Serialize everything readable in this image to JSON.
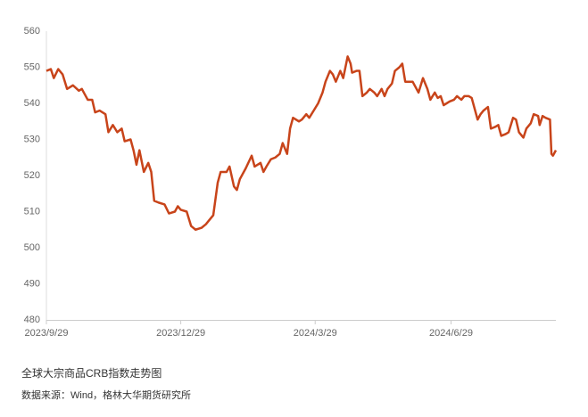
{
  "chart_data": {
    "type": "line",
    "x": [
      "2023-09-29",
      "2023-10-02",
      "2023-10-04",
      "2023-10-07",
      "2023-10-10",
      "2023-10-13",
      "2023-10-17",
      "2023-10-21",
      "2023-10-23",
      "2023-10-27",
      "2023-10-30",
      "2023-11-01",
      "2023-11-04",
      "2023-11-08",
      "2023-11-10",
      "2023-11-13",
      "2023-11-16",
      "2023-11-19",
      "2023-11-21",
      "2023-11-25",
      "2023-11-27",
      "2023-11-29",
      "2023-12-01",
      "2023-12-04",
      "2023-12-07",
      "2023-12-09",
      "2023-12-11",
      "2023-12-14",
      "2023-12-18",
      "2023-12-21",
      "2023-12-25",
      "2023-12-27",
      "2023-12-29",
      "2024-01-02",
      "2024-01-05",
      "2024-01-08",
      "2024-01-12",
      "2024-01-15",
      "2024-01-18",
      "2024-01-20",
      "2024-01-23",
      "2024-01-25",
      "2024-01-29",
      "2024-01-31",
      "2024-02-03",
      "2024-02-05",
      "2024-02-07",
      "2024-02-11",
      "2024-02-15",
      "2024-02-17",
      "2024-02-21",
      "2024-02-23",
      "2024-02-25",
      "2024-02-28",
      "2024-03-02",
      "2024-03-05",
      "2024-03-07",
      "2024-03-10",
      "2024-03-12",
      "2024-03-14",
      "2024-03-18",
      "2024-03-20",
      "2024-03-23",
      "2024-03-25",
      "2024-03-28",
      "2024-03-31",
      "2024-04-03",
      "2024-04-05",
      "2024-04-08",
      "2024-04-10",
      "2024-04-12",
      "2024-04-15",
      "2024-04-17",
      "2024-04-20",
      "2024-04-22",
      "2024-04-23",
      "2024-04-26",
      "2024-04-28",
      "2024-04-30",
      "2024-05-03",
      "2024-05-05",
      "2024-05-08",
      "2024-05-10",
      "2024-05-13",
      "2024-05-15",
      "2024-05-17",
      "2024-05-20",
      "2024-05-22",
      "2024-05-25",
      "2024-05-27",
      "2024-05-29",
      "2024-06-01",
      "2024-06-03",
      "2024-06-07",
      "2024-06-10",
      "2024-06-13",
      "2024-06-15",
      "2024-06-18",
      "2024-06-20",
      "2024-06-22",
      "2024-06-24",
      "2024-06-26",
      "2024-06-28",
      "2024-07-01",
      "2024-07-03",
      "2024-07-06",
      "2024-07-08",
      "2024-07-11",
      "2024-07-13",
      "2024-07-17",
      "2024-07-19",
      "2024-07-21",
      "2024-07-24",
      "2024-07-26",
      "2024-07-29",
      "2024-07-31",
      "2024-08-02",
      "2024-08-05",
      "2024-08-07",
      "2024-08-10",
      "2024-08-12",
      "2024-08-14",
      "2024-08-17",
      "2024-08-19",
      "2024-08-22",
      "2024-08-24",
      "2024-08-27",
      "2024-08-28",
      "2024-08-30",
      "2024-09-01",
      "2024-09-04",
      "2024-09-05",
      "2024-09-06",
      "2024-09-08"
    ],
    "series": [
      {
        "color": "#c8441a",
        "values": [
          549,
          549.5,
          547,
          549.5,
          548,
          544,
          545,
          543.5,
          544,
          541,
          541,
          537.5,
          538,
          537,
          532,
          534,
          532,
          533,
          529.5,
          530,
          527,
          523,
          527,
          521,
          523.5,
          521,
          513,
          512.5,
          512,
          509.5,
          510,
          511.5,
          510.5,
          510,
          506,
          505,
          505.5,
          506.5,
          508,
          509,
          518,
          521,
          521,
          522.5,
          517,
          516,
          519,
          522,
          525.5,
          522.5,
          523.5,
          521,
          522.5,
          524.5,
          525,
          526,
          529,
          526,
          533,
          536,
          535,
          535.5,
          537,
          536,
          538,
          540,
          543,
          546,
          549,
          548,
          546,
          549,
          547,
          553,
          551,
          548.5,
          549,
          549,
          542,
          543,
          544,
          543,
          542,
          544,
          542,
          544,
          545.5,
          549,
          550,
          551,
          546,
          546,
          546,
          543,
          547,
          544,
          541,
          543,
          541.5,
          542,
          539.5,
          540,
          540.5,
          541,
          542,
          541,
          542,
          542,
          541.5,
          535.5,
          537,
          538,
          539,
          533,
          533.5,
          534,
          531,
          531.5,
          532,
          536,
          535.5,
          532,
          530.5,
          533,
          534.5,
          537,
          536.5,
          534,
          536.5,
          536,
          535.5,
          526,
          525.5,
          527
        ]
      }
    ],
    "xlim": [
      "2023-09-29",
      "2024-09-08"
    ],
    "xticks": [
      {
        "value": "2023-09-29",
        "label": "2023/9/29"
      },
      {
        "value": "2023-12-29",
        "label": "2023/12/29"
      },
      {
        "value": "2024-03-29",
        "label": "2024/3/29"
      },
      {
        "value": "2024-06-29",
        "label": "2024/6/29"
      }
    ],
    "ylim": [
      480,
      560
    ],
    "yticks": [
      480,
      490,
      500,
      510,
      520,
      530,
      540,
      550,
      560
    ],
    "grid": false
  },
  "caption": {
    "title": "全球大宗商品CRB指数走势图",
    "source": "数据来源：Wind，格林大华期货研究所"
  }
}
